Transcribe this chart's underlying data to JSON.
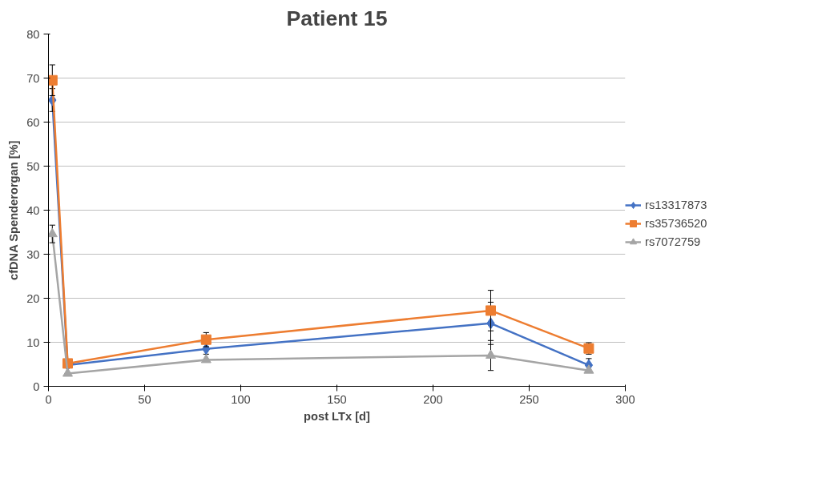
{
  "chart_data": {
    "type": "line",
    "title": "Patient 15",
    "xlabel": "post LTx [d]",
    "ylabel": "cfDNA Spenderorgan [%]",
    "x": [
      2,
      10,
      82,
      230,
      281
    ],
    "series": [
      {
        "name": "rs13317873",
        "color": "#4472c4",
        "marker": "diamond",
        "values": [
          65,
          4.8,
          8.5,
          14.3,
          4.8
        ],
        "errors": [
          2.6,
          null,
          1.2,
          4.8,
          1.5
        ]
      },
      {
        "name": "rs35736520",
        "color": "#ed7d31",
        "marker": "square",
        "values": [
          69.5,
          5.2,
          10.6,
          17.2,
          8.6
        ],
        "errors": [
          3.5,
          null,
          1.6,
          4.6,
          1.3
        ]
      },
      {
        "name": "rs7072759",
        "color": "#a5a5a5",
        "marker": "triangle",
        "values": [
          34.6,
          2.9,
          6.0,
          7.0,
          3.6
        ],
        "errors": [
          2.0,
          null,
          null,
          3.4,
          null
        ]
      }
    ],
    "xlim": [
      0,
      300
    ],
    "xticks": [
      0,
      50,
      100,
      150,
      200,
      250,
      300
    ],
    "ylim": [
      0,
      80
    ],
    "yticks": [
      0,
      10,
      20,
      30,
      40,
      50,
      60,
      70,
      80
    ],
    "grid": "y",
    "legend": "right"
  }
}
